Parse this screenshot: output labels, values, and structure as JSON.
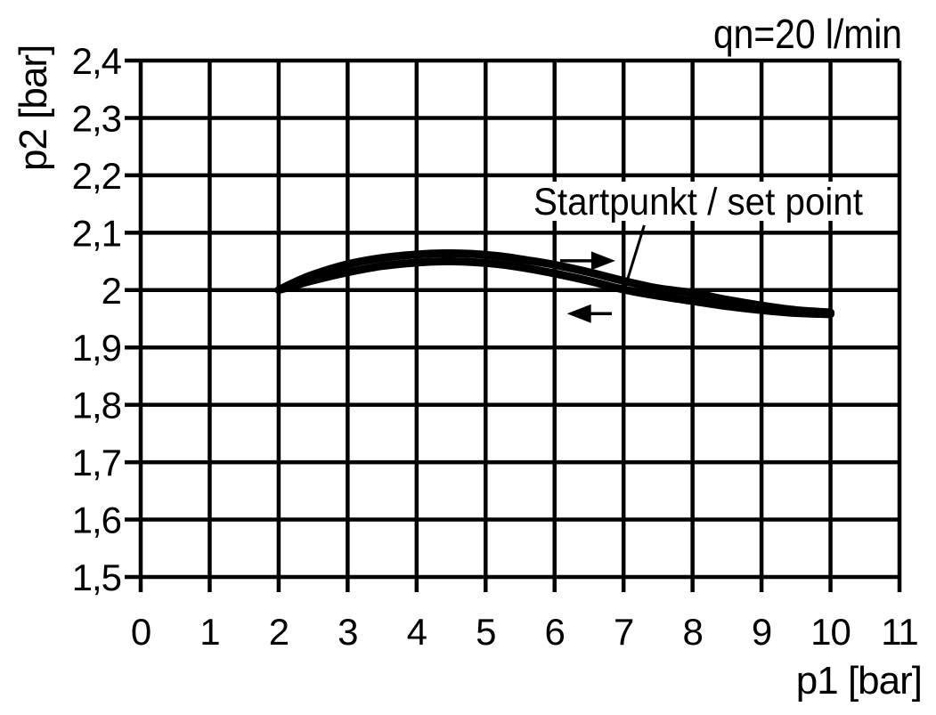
{
  "figure": {
    "background_color": "#ffffff",
    "ink_color": "#000000"
  },
  "chart_data": {
    "type": "line",
    "title": "qn=20 l/min",
    "xlabel": "p1 [bar]",
    "ylabel": "p2 [bar]",
    "xlim": [
      0,
      11
    ],
    "ylim": [
      1.5,
      2.4
    ],
    "grid": true,
    "legend": "none",
    "x_ticks": {
      "values": [
        0,
        1,
        2,
        3,
        4,
        5,
        6,
        7,
        8,
        9,
        10,
        11
      ],
      "labels": [
        "0",
        "1",
        "2",
        "3",
        "4",
        "5",
        "6",
        "7",
        "8",
        "9",
        "10",
        "11"
      ]
    },
    "y_ticks": {
      "values": [
        2.4,
        2.3,
        2.2,
        2.1,
        2.0,
        1.9,
        1.8,
        1.7,
        1.6,
        1.5
      ],
      "labels": [
        "2,4",
        "2,3",
        "2,2",
        "2,1",
        "2",
        "1,9",
        "1,8",
        "1,7",
        "1,6",
        "1,5"
      ]
    },
    "series": [
      {
        "id": "upper-forward",
        "name": "upper curve (forward direction, arrow right)",
        "points": [
          [
            2.0,
            2.0
          ],
          [
            2.2,
            2.012
          ],
          [
            2.5,
            2.027
          ],
          [
            3.0,
            2.045
          ],
          [
            3.5,
            2.056
          ],
          [
            4.0,
            2.062
          ],
          [
            4.4,
            2.064
          ],
          [
            4.8,
            2.063
          ],
          [
            5.2,
            2.059
          ],
          [
            5.6,
            2.052
          ],
          [
            6.0,
            2.044
          ],
          [
            6.5,
            2.031
          ],
          [
            7.0,
            2.016
          ],
          [
            7.5,
            2.003
          ],
          [
            8.0,
            1.995
          ],
          [
            8.5,
            1.983
          ],
          [
            9.0,
            1.973
          ],
          [
            9.5,
            1.965
          ],
          [
            10.0,
            1.961
          ]
        ]
      },
      {
        "id": "lower-return",
        "name": "lower curve (return direction, arrow left)",
        "points": [
          [
            2.0,
            2.0
          ],
          [
            2.2,
            2.007
          ],
          [
            2.5,
            2.017
          ],
          [
            3.0,
            2.031
          ],
          [
            3.5,
            2.042
          ],
          [
            4.0,
            2.048
          ],
          [
            4.4,
            2.05
          ],
          [
            4.8,
            2.049
          ],
          [
            5.2,
            2.045
          ],
          [
            5.6,
            2.038
          ],
          [
            6.0,
            2.029
          ],
          [
            6.5,
            2.016
          ],
          [
            7.0,
            2.001
          ],
          [
            7.5,
            1.99
          ],
          [
            8.0,
            1.981
          ],
          [
            8.5,
            1.972
          ],
          [
            9.0,
            1.965
          ],
          [
            9.5,
            1.96
          ],
          [
            10.0,
            1.958
          ]
        ]
      }
    ],
    "annotations": {
      "set_point_label": "Startpunkt / set point",
      "set_point": [
        7,
        2.0
      ],
      "leader_line": [
        [
          7.3,
          2.113
        ],
        [
          7.02,
          2.004
        ]
      ],
      "arrows": [
        {
          "icon": "arrow-right-icon",
          "direction": "right",
          "x_from": 6.08,
          "x_to": 6.88,
          "y": 2.051
        },
        {
          "icon": "arrow-left-icon",
          "direction": "left",
          "x_from": 6.83,
          "x_to": 6.18,
          "y": 1.959
        }
      ]
    },
    "start_point": [
      2,
      2.0
    ],
    "end_point": [
      10,
      1.96
    ]
  }
}
